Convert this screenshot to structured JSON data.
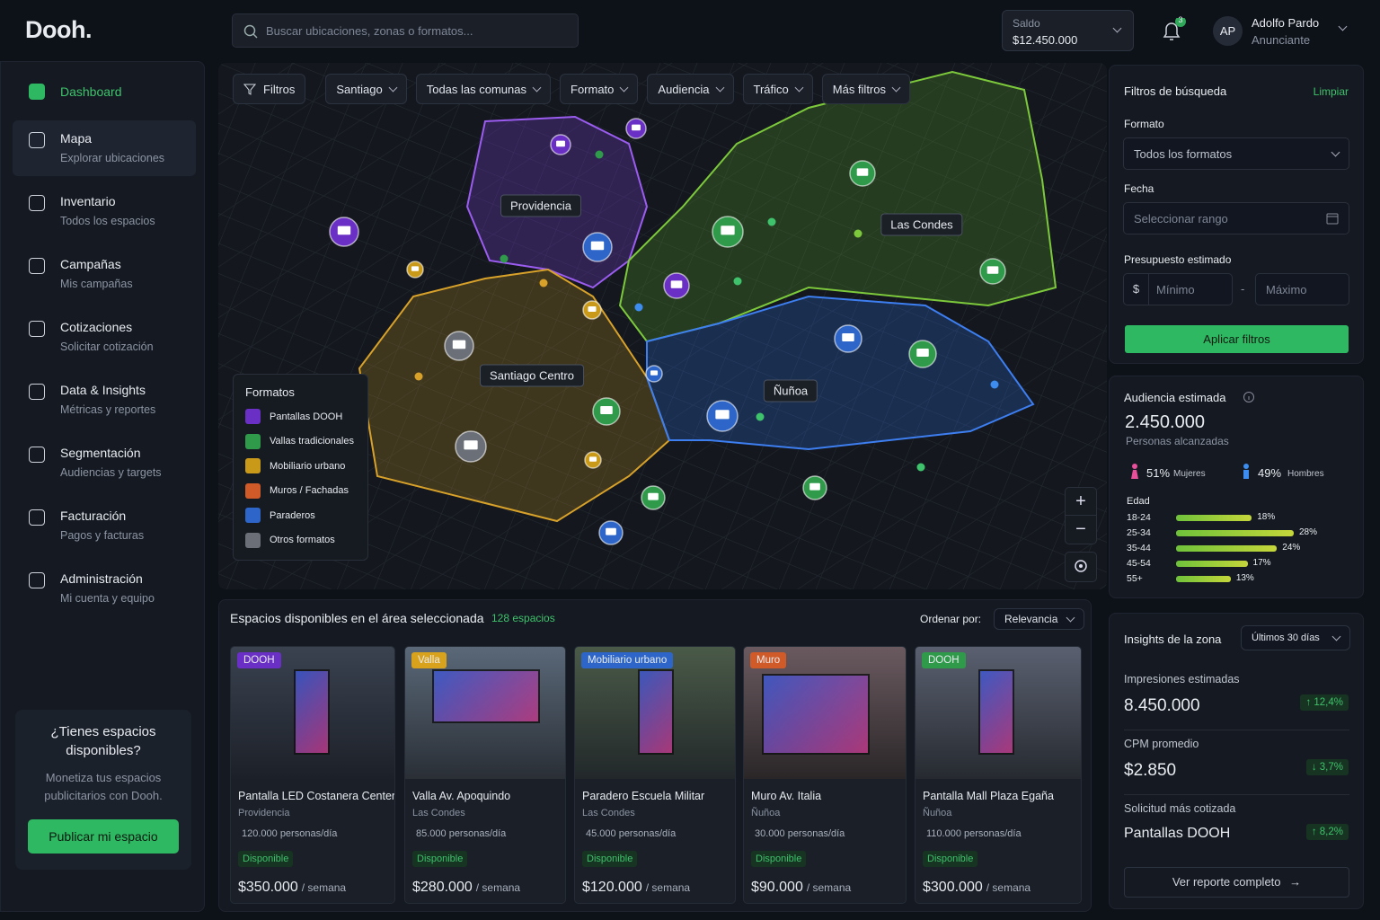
{
  "header": {
    "logo": "Dooh.",
    "search_placeholder": "Buscar ubicaciones, zonas o formatos...",
    "balance_label": "Saldo",
    "balance": "$12.450.000",
    "notifications": "3",
    "avatar": "AP",
    "user_name": "Adolfo Pardo",
    "user_role": "Anunciante"
  },
  "sidebar": {
    "items": [
      {
        "label": "Dashboard"
      },
      {
        "label": "Mapa",
        "sub": "Explorar ubicaciones"
      },
      {
        "label": "Inventario",
        "sub": "Todos los espacios"
      },
      {
        "label": "Campañas",
        "sub": "Mis campañas"
      },
      {
        "label": "Cotizaciones",
        "sub": "Solicitar cotización"
      },
      {
        "label": "Data & Insights",
        "sub": "Métricas y reportes"
      },
      {
        "label": "Segmentación",
        "sub": "Audiencias y targets"
      },
      {
        "label": "Facturación",
        "sub": "Pagos y facturas"
      },
      {
        "label": "Administración",
        "sub": "Mi cuenta y equipo"
      }
    ],
    "promo": {
      "title": "¿Tienes espacios disponibles?",
      "text": "Monetiza tus espacios publicitarios con Dooh.",
      "button": "Publicar mi espacio"
    }
  },
  "map": {
    "filters": [
      "Filtros",
      "Santiago",
      "Todas las comunas",
      "Formato",
      "Audiencia",
      "Tráfico",
      "Más filtros"
    ],
    "zones": [
      "Providencia",
      "Las Condes",
      "Santiago Centro",
      "Ñuñoa"
    ],
    "legend": {
      "title": "Formatos",
      "items": [
        "Pantallas DOOH",
        "Vallas tradicionales",
        "Mobiliario urbano",
        "Muros / Fachadas",
        "Paraderos",
        "Otros formatos"
      ]
    }
  },
  "listing": {
    "title": "Espacios disponibles en el área seleccionada",
    "count": "128 espacios",
    "sort_label": "Ordenar por:",
    "sort": "Relevancia",
    "cards": [
      {
        "tag": "DOOH",
        "name": "Pantalla LED Costanera Center",
        "area": "Providencia",
        "audience": "120.000 personas/día",
        "status": "Disponible",
        "price": "$350.000",
        "unit": "/ semana"
      },
      {
        "tag": "Valla",
        "name": "Valla Av. Apoquindo",
        "area": "Las Condes",
        "audience": "85.000 personas/día",
        "status": "Disponible",
        "price": "$280.000",
        "unit": "/ semana"
      },
      {
        "tag": "Mobiliario urbano",
        "name": "Paradero Escuela Militar",
        "area": "Las Condes",
        "audience": "45.000 personas/día",
        "status": "Disponible",
        "price": "$120.000",
        "unit": "/ semana"
      },
      {
        "tag": "Muro",
        "name": "Muro Av. Italia",
        "area": "Ñuñoa",
        "audience": "30.000 personas/día",
        "status": "Disponible",
        "price": "$90.000",
        "unit": "/ semana"
      },
      {
        "tag": "DOOH",
        "name": "Pantalla Mall Plaza Egaña",
        "area": "Ñuñoa",
        "audience": "110.000 personas/día",
        "status": "Disponible",
        "price": "$300.000",
        "unit": "/ semana"
      }
    ]
  },
  "filters_panel": {
    "title": "Filtros de búsqueda",
    "clear": "Limpiar",
    "format_label": "Formato",
    "format_value": "Todos los formatos",
    "date_label": "Fecha",
    "date_placeholder": "Seleccionar rango",
    "budget_label": "Presupuesto estimado",
    "currency": "$",
    "min_placeholder": "Mínimo",
    "separator": "-",
    "max_placeholder": "Máximo",
    "apply": "Aplicar filtros"
  },
  "audience": {
    "title": "Audiencia estimada",
    "total": "2.450.000",
    "total_label": "Personas alcanzadas",
    "women": "51%",
    "women_label": "Mujeres",
    "men": "49%",
    "men_label": "Hombres",
    "age_title": "Edad",
    "ages": [
      {
        "range": "18-24",
        "share": 18,
        "share_label": "18%"
      },
      {
        "range": "25-34",
        "share": 28,
        "share_label": "28%"
      },
      {
        "range": "35-44",
        "share": 24,
        "share_label": "24%"
      },
      {
        "range": "45-54",
        "share": 17,
        "share_label": "17%"
      },
      {
        "range": "55+",
        "share": 13,
        "share_label": "13%"
      }
    ]
  },
  "insights": {
    "title": "Insights de la zona",
    "period": "Últimos 30 días",
    "items": [
      {
        "label": "Impresiones estimadas",
        "value": "8.450.000",
        "change": "↑ 12,4%"
      },
      {
        "label": "CPM promedio",
        "value": "$2.850",
        "change": "↓ 3,7%"
      },
      {
        "label": "Solicitud más cotizada",
        "value": "Pantallas DOOH",
        "change": "↑ 8,2%"
      }
    ],
    "report": "Ver reporte completo"
  }
}
